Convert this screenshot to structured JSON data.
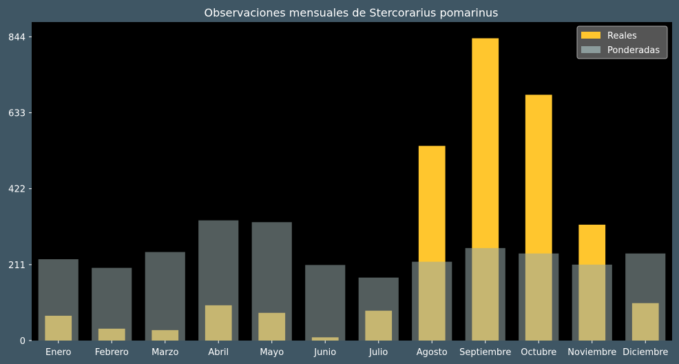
{
  "chart_data": {
    "type": "bar",
    "title": "Observaciones mensuales de Stercorarius pomarinus",
    "xlabel": "",
    "ylabel": "",
    "categories": [
      "Enero",
      "Febrero",
      "Marzo",
      "Abril",
      "Mayo",
      "Junio",
      "Julio",
      "Agosto",
      "Septiembre",
      "Octubre",
      "Noviembre",
      "Diciembre"
    ],
    "series": [
      {
        "name": "Reales",
        "color": "#ffc62e",
        "values": [
          69,
          33,
          29,
          98,
          77,
          9,
          83,
          541,
          840,
          683,
          322,
          104
        ]
      },
      {
        "name": "Ponderadas",
        "color": "#97a9a9",
        "opacity": 0.55,
        "values": [
          226,
          202,
          246,
          334,
          329,
          210,
          175,
          219,
          257,
          242,
          211,
          242
        ]
      }
    ],
    "ylim": [
      0,
      885
    ],
    "yticks": [
      0,
      211,
      422,
      633,
      844
    ],
    "grid": false,
    "legend": "top-right",
    "background": "#000000",
    "figure_background": "#3f5664"
  }
}
